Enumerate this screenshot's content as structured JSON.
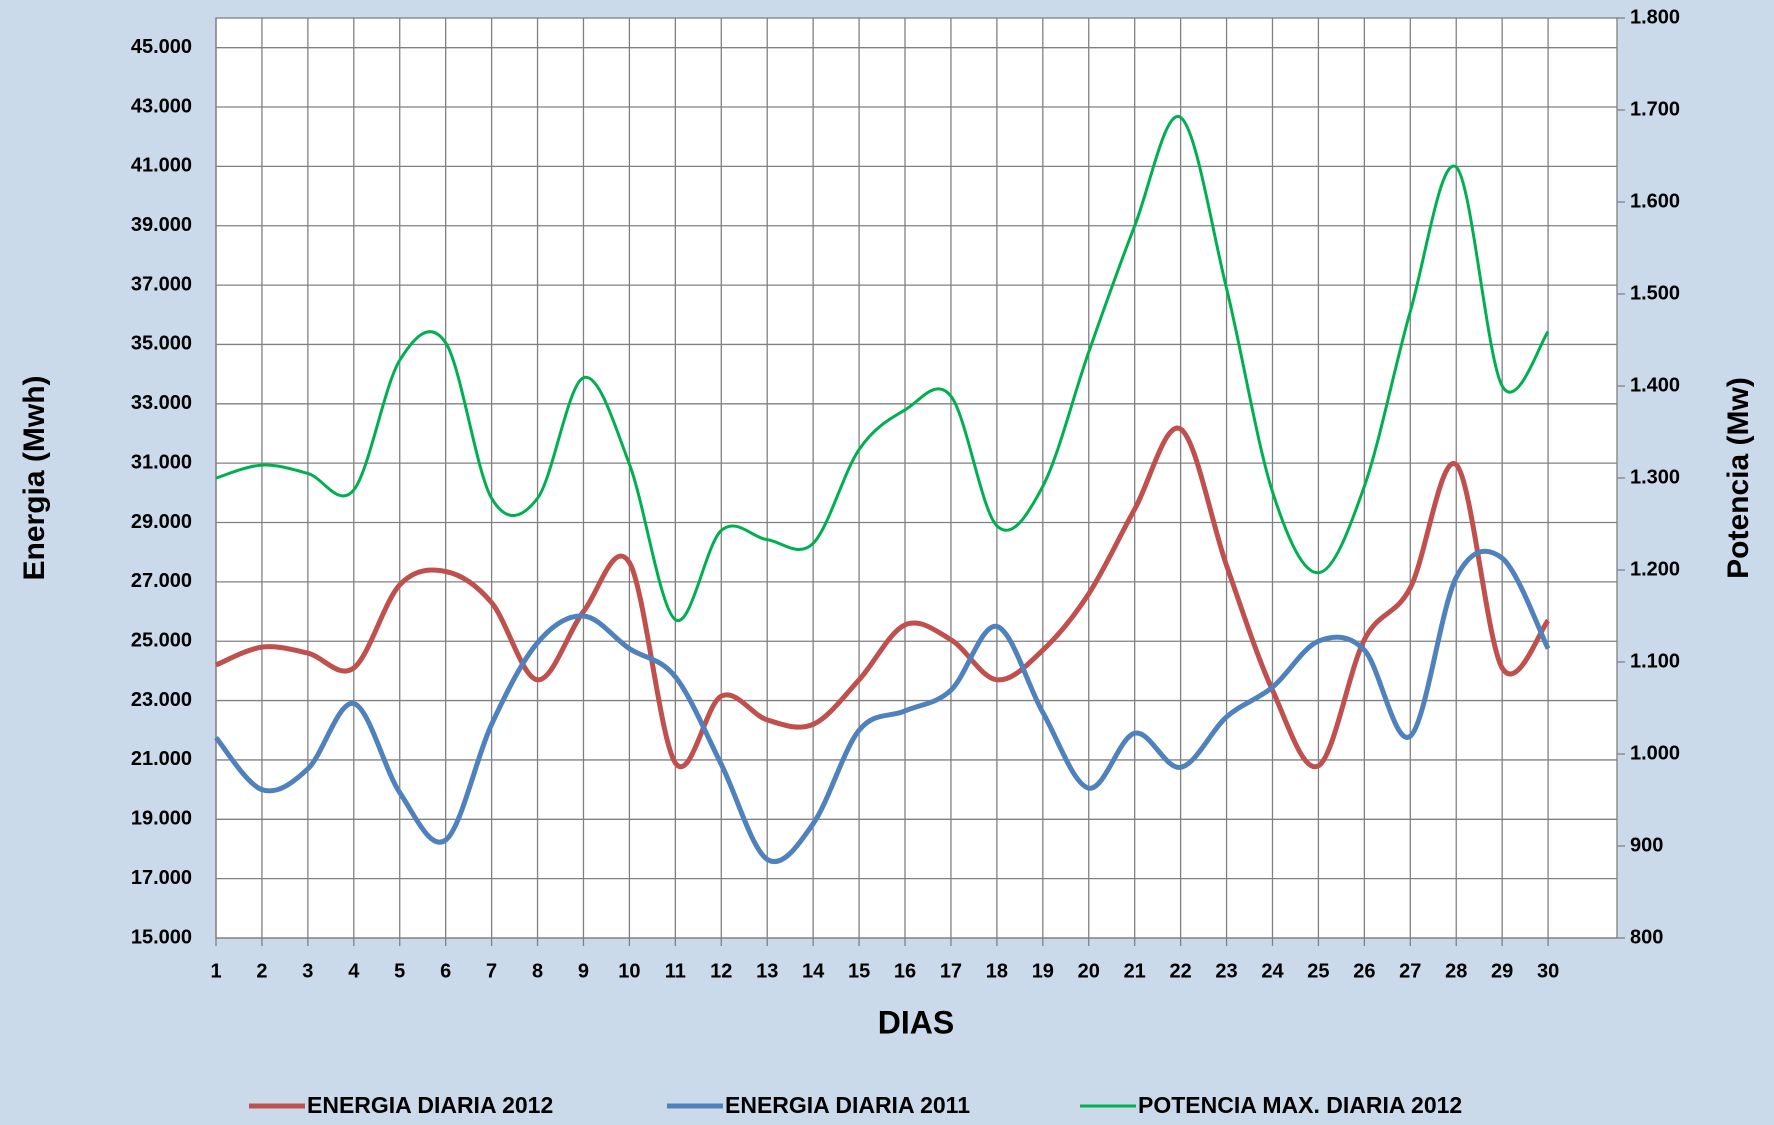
{
  "chart_data": {
    "type": "line",
    "xlabel": "DIAS",
    "ylabel": "Energia (Mwh)",
    "y2label": "Potencia (Mw)",
    "x": [
      1,
      2,
      3,
      4,
      5,
      6,
      7,
      8,
      9,
      10,
      11,
      12,
      13,
      14,
      15,
      16,
      17,
      18,
      19,
      20,
      21,
      22,
      23,
      24,
      25,
      26,
      27,
      28,
      29,
      30
    ],
    "xlim": [
      1,
      31.5
    ],
    "xticks": [
      1,
      2,
      3,
      4,
      5,
      6,
      7,
      8,
      9,
      10,
      11,
      12,
      13,
      14,
      15,
      16,
      17,
      18,
      19,
      20,
      21,
      22,
      23,
      24,
      25,
      26,
      27,
      28,
      29,
      30
    ],
    "ylim": [
      15000,
      46000
    ],
    "yticks": [
      {
        "value": 15000,
        "label": "15.000"
      },
      {
        "value": 17000,
        "label": "17.000"
      },
      {
        "value": 19000,
        "label": "19.000"
      },
      {
        "value": 21000,
        "label": "21.000"
      },
      {
        "value": 23000,
        "label": "23.000"
      },
      {
        "value": 25000,
        "label": "25.000"
      },
      {
        "value": 27000,
        "label": "27.000"
      },
      {
        "value": 29000,
        "label": "29.000"
      },
      {
        "value": 31000,
        "label": "31.000"
      },
      {
        "value": 33000,
        "label": "33.000"
      },
      {
        "value": 35000,
        "label": "35.000"
      },
      {
        "value": 37000,
        "label": "37.000"
      },
      {
        "value": 39000,
        "label": "39.000"
      },
      {
        "value": 41000,
        "label": "41.000"
      },
      {
        "value": 43000,
        "label": "43.000"
      },
      {
        "value": 45000,
        "label": "45.000"
      }
    ],
    "y2lim": [
      800,
      1800
    ],
    "y2ticks": [
      800,
      900,
      {
        "value": 1000,
        "label": "1.000"
      },
      {
        "value": 1100,
        "label": "1.100"
      },
      {
        "value": 1200,
        "label": "1.200"
      },
      {
        "value": 1300,
        "label": "1.300"
      },
      {
        "value": 1400,
        "label": "1.400"
      },
      {
        "value": 1500,
        "label": "1.500"
      },
      {
        "value": 1600,
        "label": "1.600"
      },
      {
        "value": 1700,
        "label": "1.700"
      },
      {
        "value": 1800,
        "label": "1.800"
      }
    ],
    "grid": true,
    "legend": "bottom",
    "series": [
      {
        "name": "ENERGIA DIARIA 2012",
        "color": "#c0504d",
        "values": [
          24200,
          24800,
          24600,
          24100,
          26900,
          27350,
          26300,
          23700,
          26000,
          27650,
          20900,
          23150,
          22350,
          22200,
          23700,
          25550,
          25050,
          23700,
          24700,
          26600,
          29450,
          32150,
          27550,
          23350,
          20800,
          25050,
          26800,
          30950,
          24100,
          25700
        ]
      },
      {
        "name": "ENERGIA DIARIA 2011",
        "color": "#4f81bd",
        "values": [
          21750,
          20000,
          20700,
          22900,
          19900,
          18300,
          22200,
          24950,
          25850,
          24750,
          23800,
          20850,
          17650,
          18850,
          22000,
          22650,
          23350,
          25500,
          22600,
          20050,
          21900,
          20750,
          22450,
          23450,
          25000,
          24700,
          21800,
          27150,
          27800,
          24750
        ]
      },
      {
        "name": "POTENCIA MAX. DIARIA 2012",
        "color": "#00b050",
        "axis": "y2",
        "values": [
          1300,
          1314,
          1305,
          1287,
          1428,
          1447,
          1278,
          1278,
          1409,
          1315,
          1146,
          1243,
          1233,
          1229,
          1331,
          1374,
          1389,
          1248,
          1291,
          1437,
          1574,
          1692,
          1506,
          1285,
          1197,
          1291,
          1481,
          1638,
          1400,
          1459
        ]
      }
    ]
  }
}
